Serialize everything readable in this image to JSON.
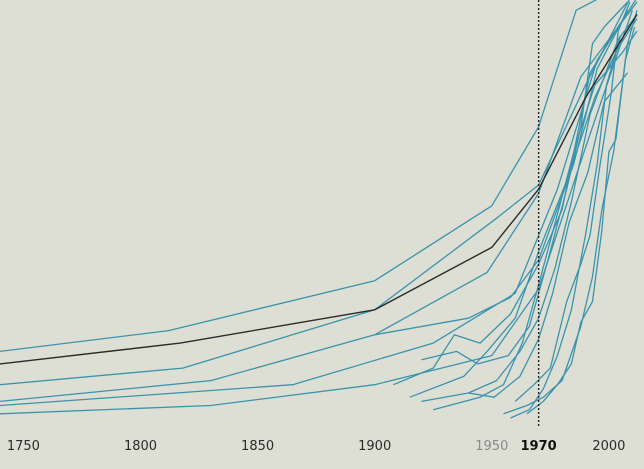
{
  "chart_data": {
    "type": "line",
    "title": "",
    "xlabel": "",
    "ylabel": "",
    "xlim": [
      1740,
      2015
    ],
    "ylim": [
      0,
      100
    ],
    "grid": false,
    "legend": "none",
    "x_ticks": [
      {
        "label": "1750",
        "value": 1750,
        "style": "normal"
      },
      {
        "label": "1800",
        "value": 1800,
        "style": "normal"
      },
      {
        "label": "1850",
        "value": 1850,
        "style": "normal"
      },
      {
        "label": "1900",
        "value": 1900,
        "style": "normal"
      },
      {
        "label": "1950",
        "value": 1950,
        "style": "muted"
      },
      {
        "label": "1970",
        "value": 1970,
        "style": "bold"
      },
      {
        "label": "2000",
        "value": 2000,
        "style": "normal"
      }
    ],
    "reference_line": {
      "x": 1970,
      "style": "dotted"
    },
    "colors": {
      "series": "#3a93ad",
      "highlight": "#2b2b2b",
      "reference": "#222222",
      "background": "#dedfd4"
    },
    "highlight_series": {
      "points": [
        [
          1740,
          13
        ],
        [
          1817,
          18
        ],
        [
          1900,
          26
        ],
        [
          1950,
          41
        ],
        [
          1970,
          55
        ],
        [
          1990,
          77
        ],
        [
          2012,
          97
        ]
      ]
    },
    "series": [
      {
        "points": [
          [
            1740,
            16
          ],
          [
            1812,
            21
          ],
          [
            1900,
            33
          ],
          [
            1950,
            51
          ],
          [
            1970,
            70
          ],
          [
            1986,
            98
          ],
          [
            2003,
            103
          ]
        ]
      },
      {
        "points": [
          [
            1740,
            8
          ],
          [
            1818,
            12
          ],
          [
            1900,
            26
          ],
          [
            1952,
            48
          ],
          [
            1970,
            56
          ],
          [
            1990,
            80
          ],
          [
            2010,
            102
          ]
        ]
      },
      {
        "points": [
          [
            1740,
            4
          ],
          [
            1830,
            9
          ],
          [
            1900,
            20
          ],
          [
            1948,
            35
          ],
          [
            1970,
            54
          ],
          [
            1988,
            82
          ],
          [
            2012,
            100
          ]
        ]
      },
      {
        "points": [
          [
            1740,
            3
          ],
          [
            1865,
            8
          ],
          [
            1925,
            18
          ],
          [
            1960,
            30
          ],
          [
            1978,
            55
          ],
          [
            1995,
            86
          ],
          [
            2012,
            101
          ]
        ]
      },
      {
        "points": [
          [
            1740,
            1
          ],
          [
            1830,
            3
          ],
          [
            1900,
            8
          ],
          [
            1950,
            15
          ],
          [
            1970,
            31
          ],
          [
            1990,
            65
          ],
          [
            2010,
            98
          ]
        ]
      },
      {
        "points": [
          [
            1900,
            20
          ],
          [
            1940,
            24
          ],
          [
            1958,
            29
          ],
          [
            1970,
            38
          ],
          [
            1985,
            61
          ],
          [
            1995,
            84
          ],
          [
            2008,
            98
          ]
        ]
      },
      {
        "points": [
          [
            1908,
            8
          ],
          [
            1925,
            12
          ],
          [
            1934,
            20
          ],
          [
            1945,
            18
          ],
          [
            1958,
            25
          ],
          [
            1970,
            37
          ],
          [
            1980,
            50
          ],
          [
            1992,
            83
          ],
          [
            2005,
            95
          ]
        ]
      },
      {
        "points": [
          [
            1915,
            5
          ],
          [
            1938,
            10
          ],
          [
            1948,
            16
          ],
          [
            1960,
            24
          ],
          [
            1970,
            40
          ],
          [
            1982,
            57
          ],
          [
            1994,
            77
          ],
          [
            2004,
            89
          ],
          [
            2012,
            96
          ]
        ]
      },
      {
        "points": [
          [
            1920,
            4
          ],
          [
            1940,
            6
          ],
          [
            1952,
            9
          ],
          [
            1962,
            16
          ],
          [
            1970,
            24
          ],
          [
            1977,
            36
          ],
          [
            1984,
            52
          ],
          [
            1992,
            73
          ],
          [
            2004,
            91
          ],
          [
            2012,
            97
          ]
        ]
      },
      {
        "points": [
          [
            1920,
            14
          ],
          [
            1935,
            16
          ],
          [
            1944,
            13
          ],
          [
            1957,
            15
          ],
          [
            1966,
            22
          ],
          [
            1974,
            38
          ],
          [
            1982,
            55
          ],
          [
            1988,
            70
          ],
          [
            1993,
            90
          ],
          [
            1998,
            94
          ],
          [
            2008,
            100
          ]
        ]
      },
      {
        "points": [
          [
            1925,
            2
          ],
          [
            1945,
            5
          ],
          [
            1955,
            8
          ],
          [
            1963,
            18
          ],
          [
            1970,
            32
          ],
          [
            1978,
            49
          ],
          [
            1986,
            66
          ],
          [
            1994,
            80
          ],
          [
            2006,
            88
          ],
          [
            2012,
            93
          ]
        ]
      },
      {
        "points": [
          [
            1940,
            6
          ],
          [
            1951,
            5
          ],
          [
            1962,
            10
          ],
          [
            1970,
            19
          ],
          [
            1976,
            30
          ],
          [
            1983,
            47
          ],
          [
            1991,
            59
          ],
          [
            1998,
            76
          ],
          [
            2008,
            83
          ]
        ]
      },
      {
        "points": [
          [
            1955,
            1
          ],
          [
            1965,
            3
          ],
          [
            1972,
            5
          ],
          [
            1980,
            9
          ],
          [
            1988,
            22
          ],
          [
            1993,
            34
          ],
          [
            1997,
            50
          ],
          [
            2002,
            64
          ],
          [
            2008,
            90
          ],
          [
            2012,
            98
          ]
        ]
      },
      {
        "points": [
          [
            1958,
            0
          ],
          [
            1966,
            2
          ],
          [
            1972,
            7
          ],
          [
            1978,
            15
          ],
          [
            1984,
            26
          ],
          [
            1990,
            44
          ],
          [
            1995,
            61
          ],
          [
            1999,
            80
          ],
          [
            2005,
            92
          ]
        ]
      },
      {
        "points": [
          [
            1960,
            4
          ],
          [
            1968,
            8
          ],
          [
            1975,
            12
          ],
          [
            1982,
            28
          ],
          [
            1988,
            37
          ],
          [
            1992,
            44
          ],
          [
            1996,
            60
          ],
          [
            2001,
            78
          ],
          [
            2004,
            93
          ],
          [
            2009,
            100
          ]
        ]
      },
      {
        "points": [
          [
            1965,
            1
          ],
          [
            1972,
            4
          ],
          [
            1978,
            8
          ],
          [
            1984,
            13
          ],
          [
            1988,
            23
          ],
          [
            1993,
            28
          ],
          [
            1997,
            45
          ],
          [
            2000,
            64
          ],
          [
            2003,
            67
          ],
          [
            2007,
            86
          ],
          [
            2011,
            94
          ]
        ]
      }
    ]
  }
}
